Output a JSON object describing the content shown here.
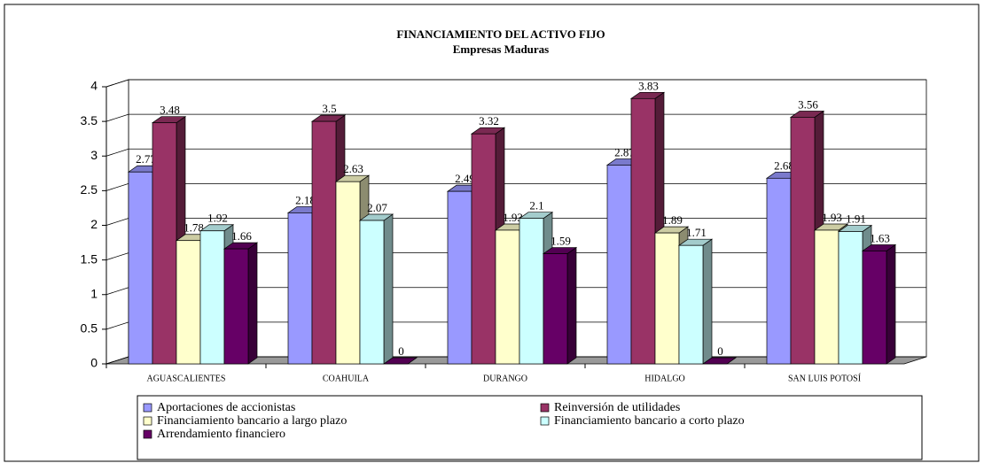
{
  "chart_data": {
    "type": "bar3d",
    "title": "FINANCIAMIENTO DEL ACTIVO FIJO",
    "subtitle": "Empresas Maduras",
    "categories": [
      "AGUASCALIENTES",
      "COAHUILA",
      "DURANGO",
      "HIDALGO",
      "SAN LUIS POTOSÍ"
    ],
    "series": [
      {
        "name": "Aportaciones de accionistas",
        "color": "#9999ff",
        "values": [
          2.77,
          2.18,
          2.49,
          2.87,
          2.68
        ]
      },
      {
        "name": "Reinversión de utilidades",
        "color": "#993366",
        "values": [
          3.48,
          3.5,
          3.32,
          3.83,
          3.56
        ]
      },
      {
        "name": "Financiamiento bancario a largo plazo",
        "color": "#ffffcc",
        "values": [
          1.78,
          2.63,
          1.93,
          1.89,
          1.93
        ]
      },
      {
        "name": "Financiamiento bancario a corto plazo",
        "color": "#ccffff",
        "values": [
          1.92,
          2.07,
          2.1,
          1.71,
          1.91
        ]
      },
      {
        "name": "Arrendamiento financiero",
        "color": "#660066",
        "values": [
          1.66,
          0,
          1.59,
          0,
          1.63
        ]
      }
    ],
    "ylim": [
      0,
      4
    ],
    "yticks": [
      0,
      0.5,
      1,
      1.5,
      2,
      2.5,
      3,
      3.5,
      4
    ],
    "grid": true,
    "legend": "bottom"
  }
}
